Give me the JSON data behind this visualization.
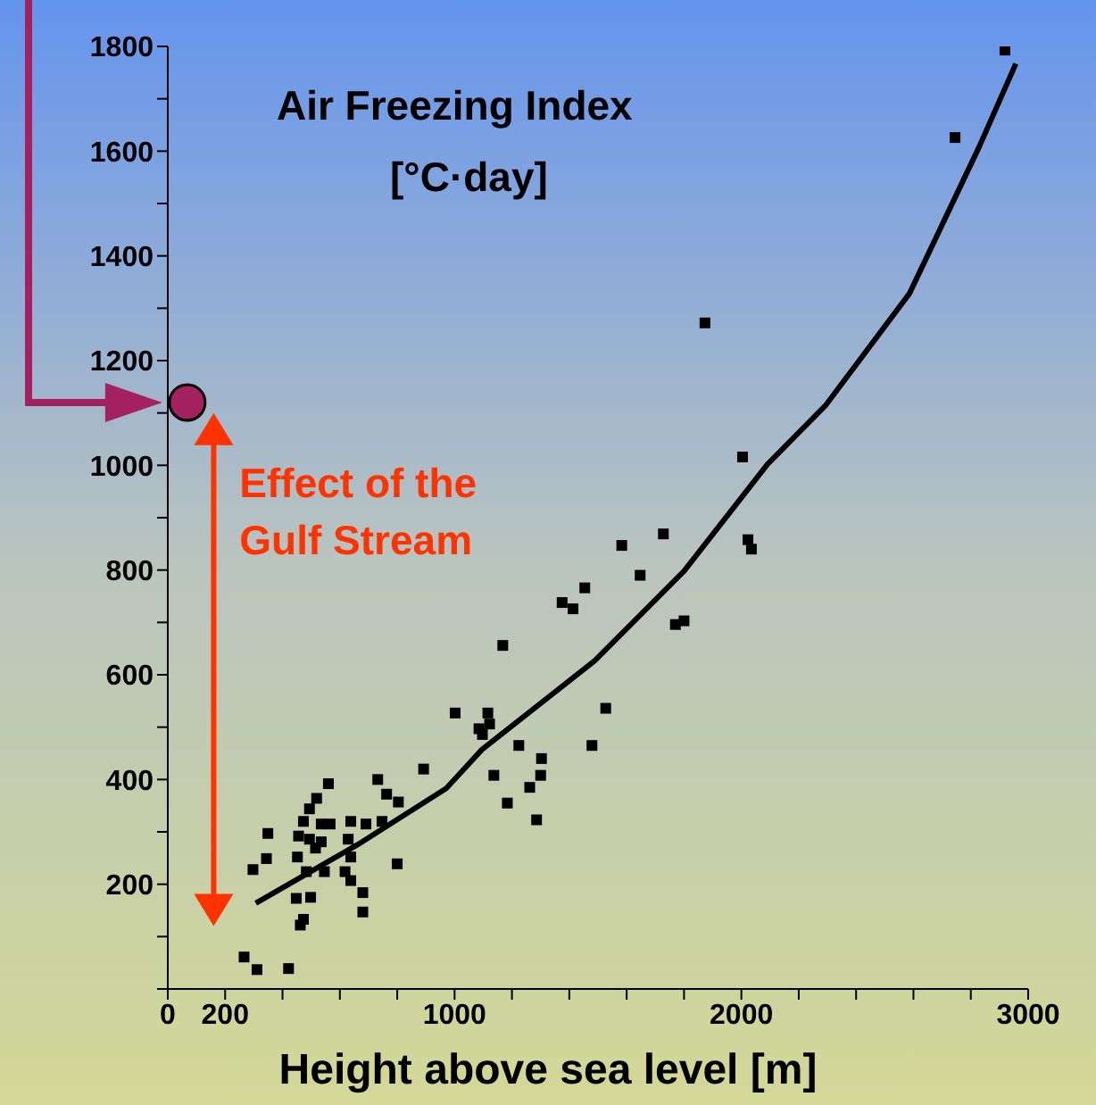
{
  "chart_data": {
    "type": "scatter",
    "ylabel": "Air Freezing Index [°C·day]",
    "xlabel": "Height above sea level [m]",
    "xlim": [
      0,
      3000
    ],
    "ylim": [
      0,
      1800
    ],
    "xticks": [
      0,
      200,
      {
        "value": 400,
        "label": null
      },
      {
        "value": 600,
        "label": null
      },
      {
        "value": 800,
        "label": null
      },
      1000,
      {
        "value": 1200,
        "label": null
      },
      {
        "value": 1400,
        "label": null
      },
      {
        "value": 1600,
        "label": null
      },
      {
        "value": 1800,
        "label": null
      },
      2000,
      {
        "value": 2200,
        "label": null
      },
      {
        "value": 2400,
        "label": null
      },
      {
        "value": 2600,
        "label": null
      },
      {
        "value": 2800,
        "label": null
      },
      3000
    ],
    "yticks": [
      {
        "value": 0,
        "label": null
      },
      {
        "value": 100,
        "label": null
      },
      200,
      {
        "value": 300,
        "label": null
      },
      400,
      {
        "value": 500,
        "label": null
      },
      600,
      {
        "value": 700,
        "label": null
      },
      800,
      {
        "value": 900,
        "label": null
      },
      1000,
      {
        "value": 1100,
        "label": null
      },
      1200,
      {
        "value": 1300,
        "label": null
      },
      1400,
      {
        "value": 1500,
        "label": null
      },
      1600,
      {
        "value": 1700,
        "label": null
      },
      1800
    ],
    "marker": "square",
    "grid": false,
    "legend": false,
    "annotations": [
      "Effect of the Gulf Stream"
    ],
    "series": [
      {
        "color": "#000000",
        "x": [
          266,
          311,
          421,
          560,
          349,
          344,
          297,
          519,
          494,
          473,
          535,
          566,
          456,
          494,
          535,
          452,
          515,
          546,
          483,
          638,
          691,
          629,
          638,
          618,
          638,
          680,
          680,
          448,
          498,
          473,
          462,
          747,
          732,
          763,
          804,
          892,
          800,
          1002,
          1116,
          1122,
          1085,
          1097,
          1224,
          1303,
          1300,
          1262,
          1286,
          1184,
          1137,
          1479,
          1527,
          1168,
          1375,
          1413,
          1454,
          1583,
          1647,
          1728,
          1770,
          1800,
          2023,
          2035,
          1873,
          2004,
          2745,
          2919
        ],
        "values": [
          61,
          37,
          39,
          392,
          297,
          249,
          228,
          364,
          344,
          320,
          315,
          315,
          292,
          286,
          281,
          252,
          269,
          224,
          224,
          320,
          315,
          286,
          252,
          224,
          207,
          184,
          147,
          173,
          175,
          133,
          122,
          320,
          400,
          372,
          357,
          420,
          239,
          527,
          527,
          506,
          497,
          486,
          465,
          440,
          408,
          385,
          323,
          355,
          408,
          465,
          536,
          656,
          738,
          726,
          766,
          847,
          790,
          869,
          696,
          703,
          858,
          840,
          1272,
          1016,
          1626,
          1793
        ]
      },
      {
        "type": "line",
        "color": "#000000",
        "marker": "none",
        "x": [
          307,
          660,
          971,
          1095,
          1489,
          1800,
          2091,
          2293,
          2586,
          2829,
          2957
        ],
        "values": [
          164,
          275,
          383,
          457,
          627,
          798,
          1002,
          1114,
          1328,
          1608,
          1767
        ]
      },
      {
        "type": "scatter",
        "color": "#a3215e",
        "marker": "circle",
        "x": [
          68
        ],
        "values": [
          1120
        ]
      }
    ]
  }
}
